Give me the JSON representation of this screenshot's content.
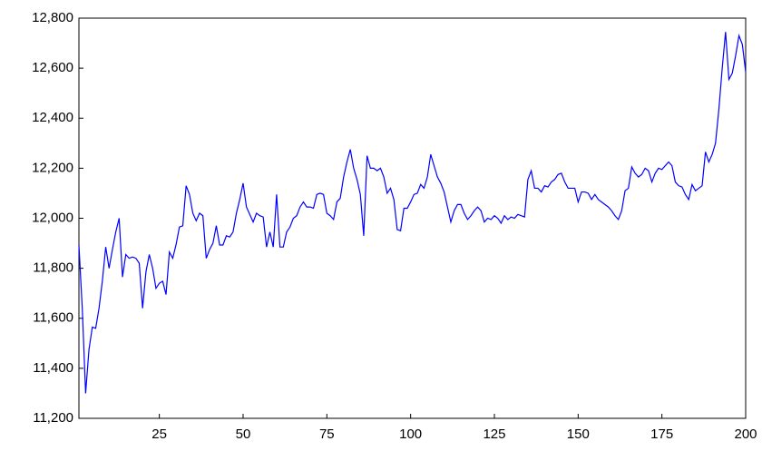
{
  "chart_data": {
    "type": "line",
    "x": [
      1,
      2,
      3,
      4,
      5,
      6,
      7,
      8,
      9,
      10,
      11,
      12,
      13,
      14,
      15,
      16,
      17,
      18,
      19,
      20,
      21,
      22,
      23,
      24,
      25,
      26,
      27,
      28,
      29,
      30,
      31,
      32,
      33,
      34,
      35,
      36,
      37,
      38,
      39,
      40,
      41,
      42,
      43,
      44,
      45,
      46,
      47,
      48,
      49,
      50,
      51,
      52,
      53,
      54,
      55,
      56,
      57,
      58,
      59,
      60,
      61,
      62,
      63,
      64,
      65,
      66,
      67,
      68,
      69,
      70,
      71,
      72,
      73,
      74,
      75,
      76,
      77,
      78,
      79,
      80,
      81,
      82,
      83,
      84,
      85,
      86,
      87,
      88,
      89,
      90,
      91,
      92,
      93,
      94,
      95,
      96,
      97,
      98,
      99,
      100,
      101,
      102,
      103,
      104,
      105,
      106,
      107,
      108,
      109,
      110,
      111,
      112,
      113,
      114,
      115,
      116,
      117,
      118,
      119,
      120,
      121,
      122,
      123,
      124,
      125,
      126,
      127,
      128,
      129,
      130,
      131,
      132,
      133,
      134,
      135,
      136,
      137,
      138,
      139,
      140,
      141,
      142,
      143,
      144,
      145,
      146,
      147,
      148,
      149,
      150,
      151,
      152,
      153,
      154,
      155,
      156,
      157,
      158,
      159,
      160,
      161,
      162,
      163,
      164,
      165,
      166,
      167,
      168,
      169,
      170,
      171,
      172,
      173,
      174,
      175,
      176,
      177,
      178,
      179,
      180,
      181,
      182,
      183,
      184,
      185,
      186,
      187,
      188,
      189,
      190,
      191,
      192,
      193,
      194,
      195,
      196,
      197,
      198,
      199,
      200
    ],
    "series": [
      {
        "color": "#0000ff",
        "values": [
          11893,
          11640,
          11300,
          11475,
          11565,
          11560,
          11640,
          11750,
          11885,
          11800,
          11875,
          11945,
          12000,
          11765,
          11855,
          11840,
          11845,
          11840,
          11820,
          11640,
          11785,
          11855,
          11800,
          11720,
          11740,
          11748,
          11695,
          11865,
          11840,
          11895,
          11965,
          11970,
          12130,
          12095,
          12020,
          11990,
          12020,
          12010,
          11840,
          11875,
          11900,
          11970,
          11893,
          11893,
          11930,
          11925,
          11945,
          12020,
          12075,
          12140,
          12045,
          12015,
          11985,
          12020,
          12010,
          12005,
          11885,
          11945,
          11885,
          12095,
          11885,
          11885,
          11945,
          11965,
          12000,
          12010,
          12045,
          12065,
          12045,
          12045,
          12040,
          12095,
          12100,
          12095,
          12020,
          12010,
          11995,
          12065,
          12080,
          12165,
          12225,
          12275,
          12200,
          12155,
          12095,
          11930,
          12250,
          12200,
          12200,
          12190,
          12200,
          12165,
          12100,
          12120,
          12075,
          11955,
          11950,
          12040,
          12040,
          12065,
          12095,
          12100,
          12135,
          12120,
          12165,
          12255,
          12210,
          12165,
          12140,
          12105,
          12045,
          11985,
          12030,
          12055,
          12055,
          12020,
          11995,
          12010,
          12030,
          12045,
          12030,
          11985,
          12000,
          11995,
          12010,
          12000,
          11980,
          12010,
          11995,
          12005,
          12000,
          12015,
          12010,
          12005,
          12155,
          12190,
          12120,
          12120,
          12105,
          12130,
          12125,
          12145,
          12155,
          12175,
          12180,
          12145,
          12120,
          12120,
          12120,
          12065,
          12105,
          12105,
          12100,
          12075,
          12095,
          12075,
          12065,
          12055,
          12045,
          12030,
          12010,
          11995,
          12030,
          12110,
          12120,
          12205,
          12180,
          12165,
          12175,
          12200,
          12190,
          12145,
          12180,
          12200,
          12195,
          12210,
          12225,
          12210,
          12145,
          12130,
          12125,
          12095,
          12075,
          12135,
          12110,
          12120,
          12130,
          12265,
          12225,
          12255,
          12300,
          12435,
          12600,
          12745,
          12555,
          12580,
          12650,
          12730,
          12695,
          12585
        ]
      }
    ],
    "xlim": [
      1,
      200
    ],
    "xticks": [
      25,
      50,
      75,
      100,
      125,
      150,
      175,
      200
    ],
    "ylim": [
      11200,
      12800
    ],
    "yticks": [
      {
        "value": 11200,
        "label": "11,200"
      },
      {
        "value": 11400,
        "label": "11,400"
      },
      {
        "value": 11600,
        "label": "11,600"
      },
      {
        "value": 11800,
        "label": "11,800"
      },
      {
        "value": 12000,
        "label": "12,000"
      },
      {
        "value": 12200,
        "label": "12,200"
      },
      {
        "value": 12400,
        "label": "12,400"
      },
      {
        "value": 12600,
        "label": "12,600"
      },
      {
        "value": 12800,
        "label": "12,800"
      }
    ],
    "grid": false
  }
}
